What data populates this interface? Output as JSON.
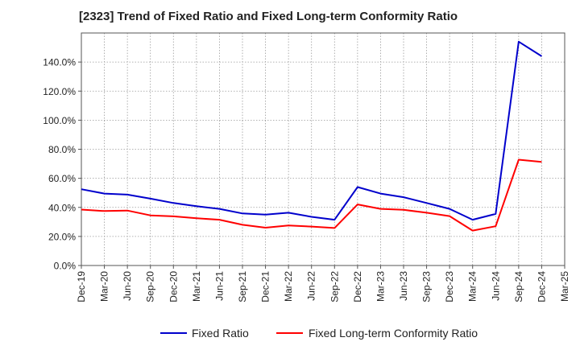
{
  "chart_data": {
    "type": "line",
    "title": "[2323]  Trend of Fixed Ratio and Fixed Long-term Conformity Ratio",
    "xlabel": "",
    "ylabel": "",
    "ylim": [
      0,
      160
    ],
    "y_ticks": [
      0,
      20,
      40,
      60,
      80,
      100,
      120,
      140
    ],
    "y_tick_labels": [
      "0.0%",
      "20.0%",
      "40.0%",
      "60.0%",
      "80.0%",
      "100.0%",
      "120.0%",
      "140.0%"
    ],
    "categories": [
      "Dec-19",
      "Mar-20",
      "Jun-20",
      "Sep-20",
      "Dec-20",
      "Mar-21",
      "Jun-21",
      "Sep-21",
      "Dec-21",
      "Mar-22",
      "Jun-22",
      "Sep-22",
      "Dec-22",
      "Mar-23",
      "Jun-23",
      "Sep-23",
      "Dec-23",
      "Mar-24",
      "Jun-24",
      "Sep-24",
      "Dec-24",
      "Mar-25"
    ],
    "grid": true,
    "legend_position": "bottom",
    "series": [
      {
        "name": "Fixed Ratio",
        "color": "#0000cc",
        "points": [
          {
            "x": "Dec-19",
            "y": 52.5
          },
          {
            "x": "Mar-20",
            "y": 49.5
          },
          {
            "x": "Jun-20",
            "y": 48.8
          },
          {
            "x": "Sep-20",
            "y": 46.0
          },
          {
            "x": "Dec-20",
            "y": 43.0
          },
          {
            "x": "Mar-21",
            "y": 40.8
          },
          {
            "x": "Jun-21",
            "y": 39.0
          },
          {
            "x": "Sep-21",
            "y": 35.8
          },
          {
            "x": "Dec-21",
            "y": 35.0
          },
          {
            "x": "Mar-22",
            "y": 36.3
          },
          {
            "x": "Jun-22",
            "y": 33.5
          },
          {
            "x": "Sep-22",
            "y": 31.5
          },
          {
            "x": "Dec-22",
            "y": 54.0
          },
          {
            "x": "Mar-23",
            "y": 49.5
          },
          {
            "x": "Jun-23",
            "y": 47.0
          },
          {
            "x": "Sep-23",
            "y": 43.0
          },
          {
            "x": "Dec-23",
            "y": 39.0
          },
          {
            "x": "Mar-24",
            "y": 31.5
          },
          {
            "x": "Jun-24",
            "y": 35.5
          },
          {
            "x": "Sep-24",
            "y": 154.0
          },
          {
            "x": "Dec-24",
            "y": 144.0
          }
        ]
      },
      {
        "name": "Fixed Long-term Conformity Ratio",
        "color": "#ff0000",
        "points": [
          {
            "x": "Dec-19",
            "y": 38.5
          },
          {
            "x": "Mar-20",
            "y": 37.5
          },
          {
            "x": "Jun-20",
            "y": 37.8
          },
          {
            "x": "Sep-20",
            "y": 34.5
          },
          {
            "x": "Dec-20",
            "y": 33.8
          },
          {
            "x": "Mar-21",
            "y": 32.5
          },
          {
            "x": "Jun-21",
            "y": 31.5
          },
          {
            "x": "Sep-21",
            "y": 28.0
          },
          {
            "x": "Dec-21",
            "y": 26.0
          },
          {
            "x": "Mar-22",
            "y": 27.5
          },
          {
            "x": "Jun-22",
            "y": 26.8
          },
          {
            "x": "Sep-22",
            "y": 25.8
          },
          {
            "x": "Dec-22",
            "y": 42.0
          },
          {
            "x": "Mar-23",
            "y": 39.0
          },
          {
            "x": "Jun-23",
            "y": 38.3
          },
          {
            "x": "Sep-23",
            "y": 36.3
          },
          {
            "x": "Dec-23",
            "y": 34.0
          },
          {
            "x": "Mar-24",
            "y": 24.0
          },
          {
            "x": "Jun-24",
            "y": 27.0
          },
          {
            "x": "Sep-24",
            "y": 72.8
          },
          {
            "x": "Dec-24",
            "y": 71.3
          }
        ]
      }
    ]
  }
}
